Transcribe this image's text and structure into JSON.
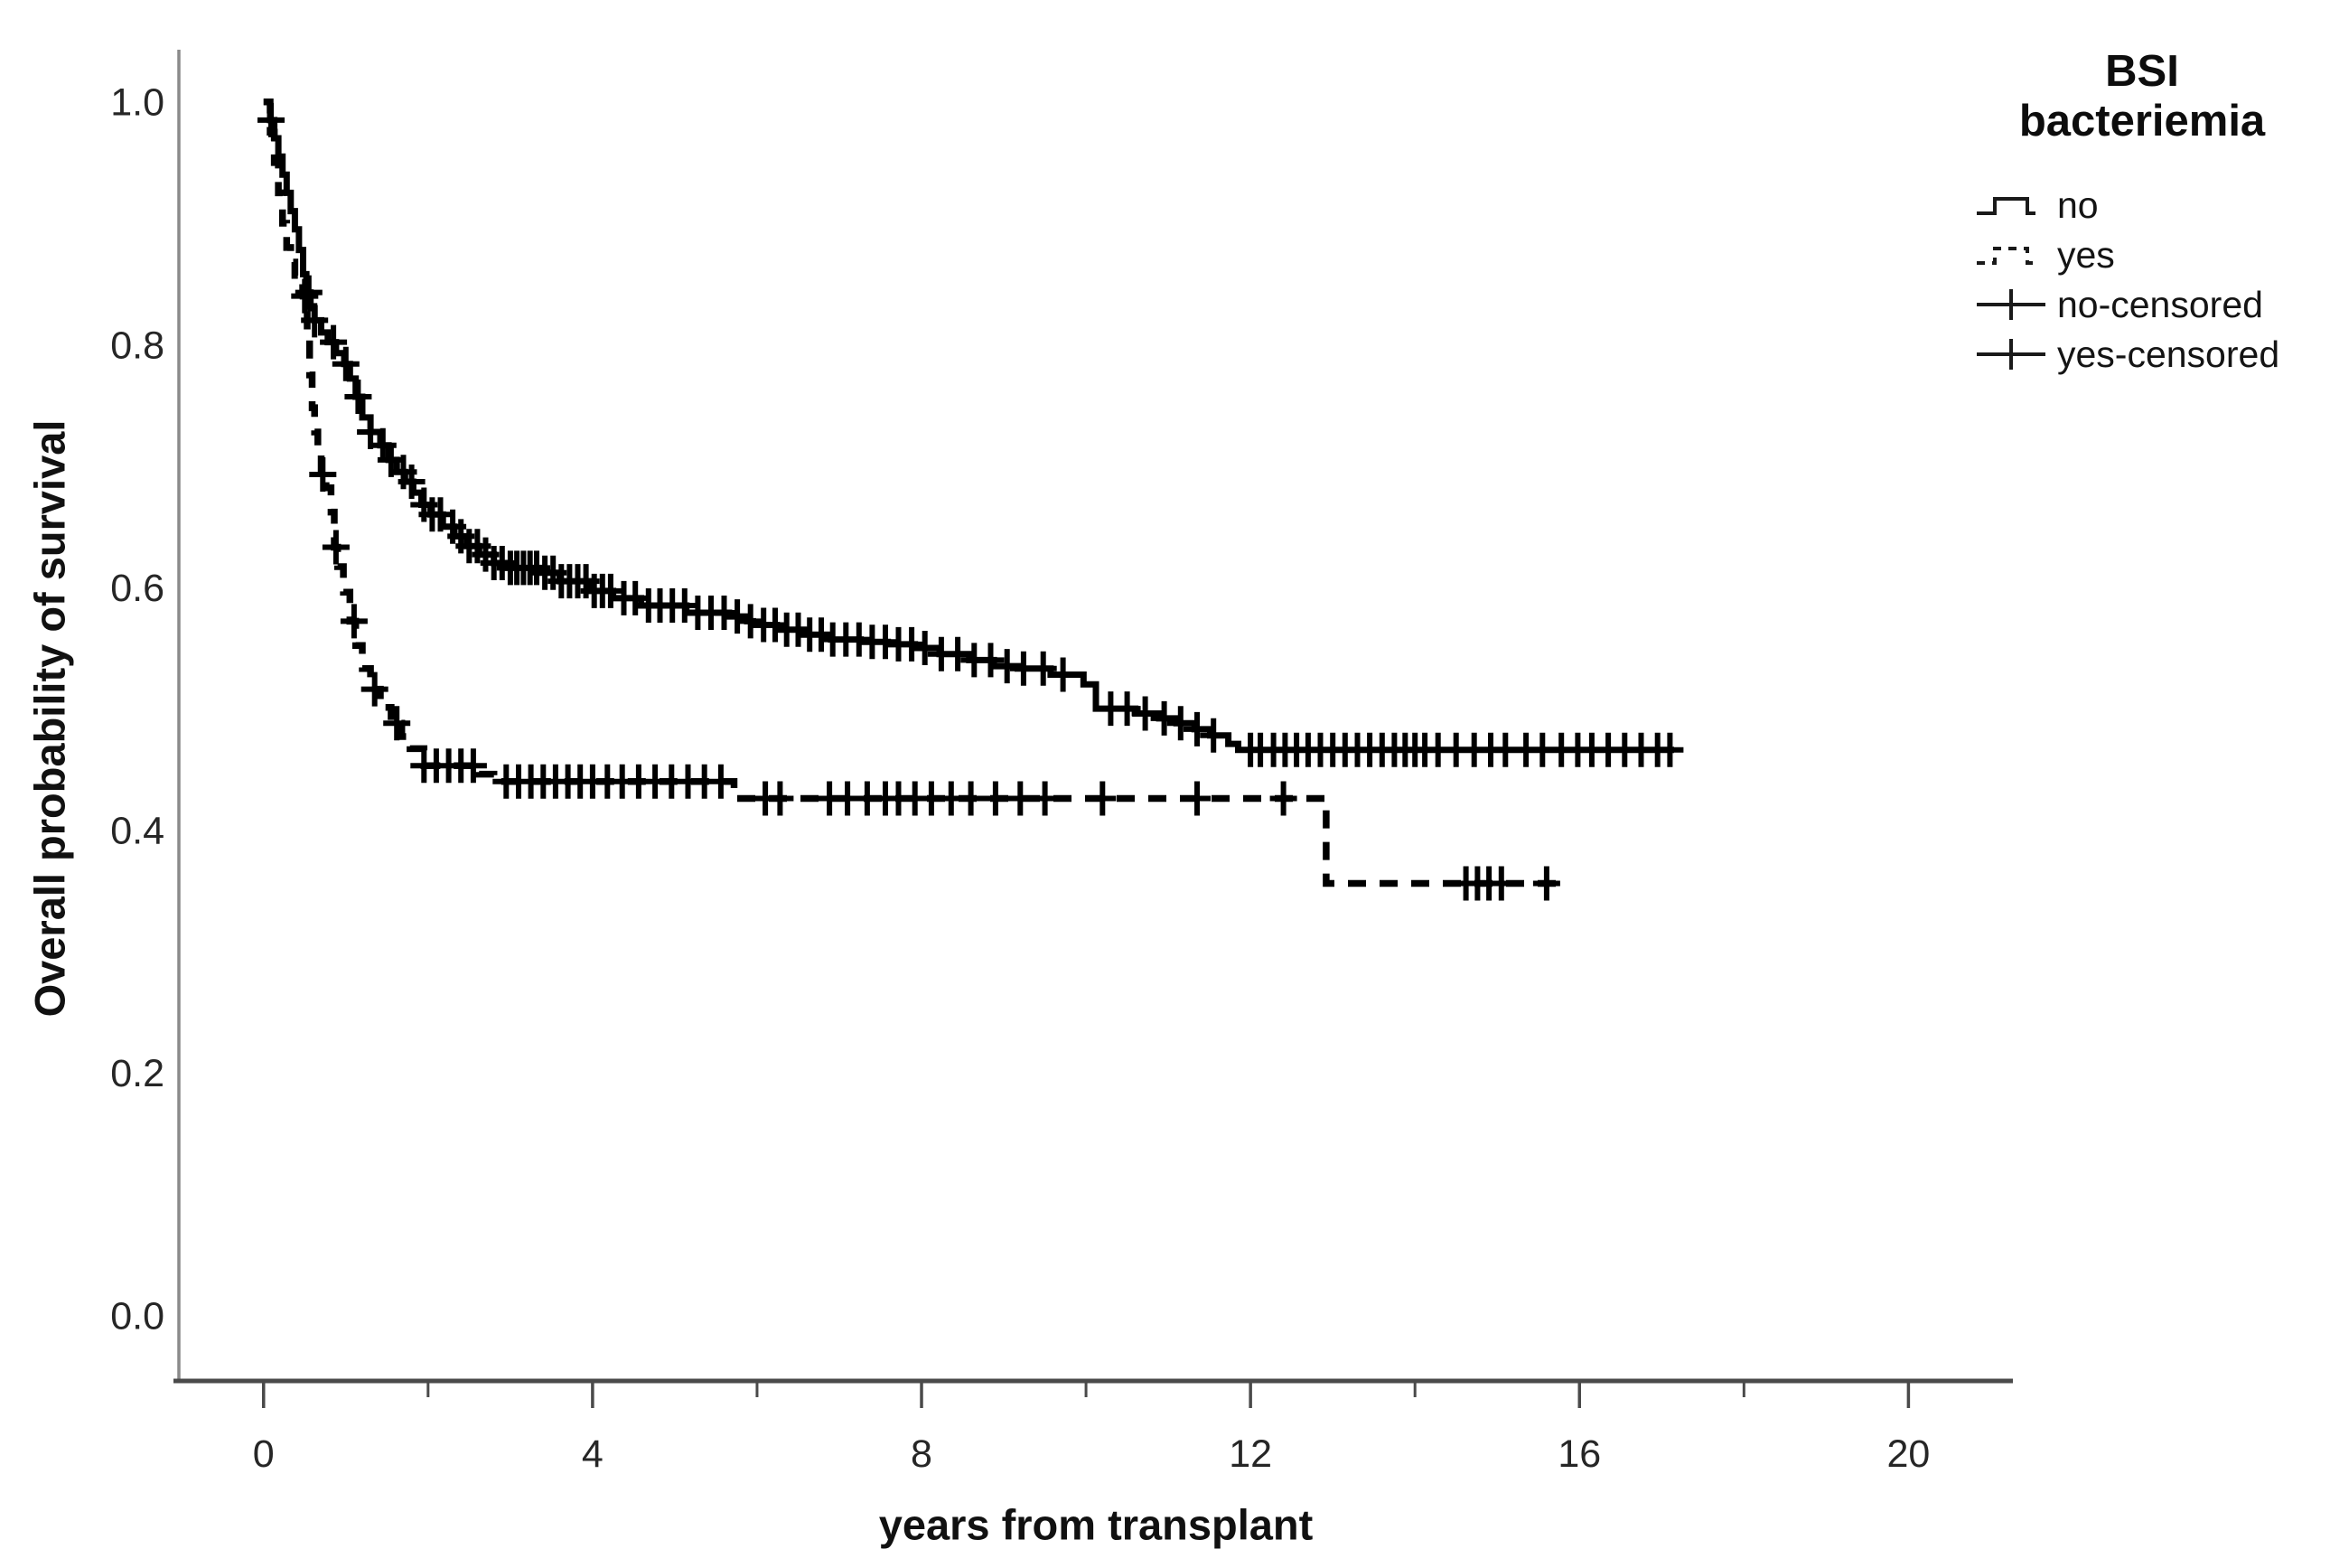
{
  "figure": {
    "background": "#ffffff",
    "curve_color": "#000000",
    "axis_line_color_left": "#8a8a8a",
    "axis_line_color_bottom": "#4a4a4a",
    "tick_label_color": "#262626"
  },
  "y_axis": {
    "title": "Overall probability of survival"
  },
  "x_axis": {
    "title": "years from transplant"
  },
  "legend": {
    "title_line1": "BSI",
    "title_line2": "bacteriemia",
    "items": [
      {
        "label": "no",
        "symbol": "solid-step-line"
      },
      {
        "label": "yes",
        "symbol": "dashed-step-line"
      },
      {
        "label": "no-censored",
        "symbol": "plus-on-line"
      },
      {
        "label": "yes-censored",
        "symbol": "plus-on-line"
      }
    ]
  },
  "chart_data": {
    "type": "line",
    "subtype": "kaplan_meier_step",
    "title": "",
    "xlabel": "years from transplant",
    "ylabel": "Overall probability of survival",
    "xlim": [
      -1.03,
      21.27
    ],
    "ylim": [
      -0.054,
      1.043
    ],
    "grid": false,
    "legend_position": "top-right",
    "x_ticks": {
      "major_values": [
        0,
        4,
        8,
        12,
        16,
        20
      ],
      "minor_values": [
        2,
        6,
        10,
        14,
        18
      ],
      "labels": [
        "0",
        "4",
        "8",
        "12",
        "16",
        "20"
      ]
    },
    "y_ticks": {
      "values": [
        0.0,
        0.2,
        0.4,
        0.6,
        0.8,
        1.0
      ],
      "labels": [
        "0.0",
        "0.2",
        "0.4",
        "0.6",
        "0.8",
        "1.0"
      ]
    },
    "series": [
      {
        "name": "no",
        "style": "solid",
        "color": "#000000",
        "points": [
          [
            0,
            1.0
          ],
          [
            0.08,
            0.985
          ],
          [
            0.13,
            0.97
          ],
          [
            0.18,
            0.955
          ],
          [
            0.23,
            0.94
          ],
          [
            0.28,
            0.925
          ],
          [
            0.33,
            0.91
          ],
          [
            0.38,
            0.895
          ],
          [
            0.43,
            0.878
          ],
          [
            0.48,
            0.858
          ],
          [
            0.52,
            0.843
          ],
          [
            0.57,
            0.83
          ],
          [
            0.62,
            0.82
          ],
          [
            0.7,
            0.81
          ],
          [
            0.78,
            0.802
          ],
          [
            0.88,
            0.793
          ],
          [
            0.98,
            0.784
          ],
          [
            1.05,
            0.772
          ],
          [
            1.12,
            0.757
          ],
          [
            1.2,
            0.74
          ],
          [
            1.3,
            0.728
          ],
          [
            1.42,
            0.717
          ],
          [
            1.52,
            0.705
          ],
          [
            1.62,
            0.695
          ],
          [
            1.72,
            0.687
          ],
          [
            1.82,
            0.678
          ],
          [
            1.92,
            0.668
          ],
          [
            2.03,
            0.66
          ],
          [
            2.18,
            0.65
          ],
          [
            2.32,
            0.642
          ],
          [
            2.47,
            0.634
          ],
          [
            2.62,
            0.627
          ],
          [
            2.8,
            0.62
          ],
          [
            2.95,
            0.616
          ],
          [
            3.38,
            0.612
          ],
          [
            3.6,
            0.605
          ],
          [
            3.97,
            0.597
          ],
          [
            4.25,
            0.591
          ],
          [
            4.59,
            0.585
          ],
          [
            5.14,
            0.579
          ],
          [
            5.66,
            0.576
          ],
          [
            5.88,
            0.572
          ],
          [
            5.95,
            0.569
          ],
          [
            6.24,
            0.565
          ],
          [
            6.57,
            0.561
          ],
          [
            6.9,
            0.557
          ],
          [
            7.26,
            0.555
          ],
          [
            7.59,
            0.553
          ],
          [
            7.92,
            0.55
          ],
          [
            8.22,
            0.545
          ],
          [
            8.58,
            0.54
          ],
          [
            8.88,
            0.535
          ],
          [
            9.17,
            0.533
          ],
          [
            9.57,
            0.528
          ],
          [
            9.97,
            0.52
          ],
          [
            10.12,
            0.5
          ],
          [
            10.6,
            0.496
          ],
          [
            10.89,
            0.492
          ],
          [
            11.1,
            0.488
          ],
          [
            11.32,
            0.483
          ],
          [
            11.51,
            0.478
          ],
          [
            11.73,
            0.471
          ],
          [
            11.85,
            0.466
          ],
          [
            17.15,
            0.466
          ]
        ],
        "censored_years": [
          0.09,
          0.55,
          0.62,
          0.85,
          1.0,
          1.15,
          1.3,
          1.45,
          1.55,
          1.7,
          1.8,
          1.95,
          2.05,
          2.15,
          2.3,
          2.4,
          2.5,
          2.6,
          2.7,
          2.8,
          2.9,
          3.0,
          3.08,
          3.16,
          3.24,
          3.32,
          3.42,
          3.52,
          3.62,
          3.72,
          3.82,
          3.92,
          4.02,
          4.12,
          4.22,
          4.38,
          4.52,
          4.68,
          4.82,
          4.97,
          5.12,
          5.28,
          5.44,
          5.6,
          5.76,
          5.92,
          6.08,
          6.22,
          6.36,
          6.5,
          6.64,
          6.78,
          6.92,
          7.08,
          7.24,
          7.4,
          7.56,
          7.72,
          7.88,
          8.04,
          8.24,
          8.44,
          8.64,
          8.84,
          9.04,
          9.24,
          9.48,
          9.72,
          10.3,
          10.5,
          10.72,
          10.95,
          11.15,
          11.35,
          11.55,
          12.0,
          12.12,
          12.28,
          12.42,
          12.56,
          12.7,
          12.85,
          13.0,
          13.15,
          13.3,
          13.45,
          13.6,
          13.75,
          13.88,
          14.0,
          14.12,
          14.28,
          14.5,
          14.72,
          14.92,
          15.1,
          15.35,
          15.55,
          15.78,
          15.98,
          16.15,
          16.35,
          16.55,
          16.75,
          16.95,
          17.1
        ]
      },
      {
        "name": "yes",
        "style": "dashed",
        "color": "#000000",
        "points": [
          [
            0,
            1.0
          ],
          [
            0.08,
            0.975
          ],
          [
            0.13,
            0.95
          ],
          [
            0.18,
            0.925
          ],
          [
            0.23,
            0.9
          ],
          [
            0.28,
            0.88
          ],
          [
            0.33,
            0.868
          ],
          [
            0.38,
            0.857
          ],
          [
            0.43,
            0.847
          ],
          [
            0.48,
            0.84
          ],
          [
            0.53,
            0.81
          ],
          [
            0.56,
            0.775
          ],
          [
            0.59,
            0.748
          ],
          [
            0.62,
            0.728
          ],
          [
            0.66,
            0.71
          ],
          [
            0.7,
            0.693
          ],
          [
            0.76,
            0.682
          ],
          [
            0.82,
            0.662
          ],
          [
            0.86,
            0.633
          ],
          [
            0.9,
            0.617
          ],
          [
            0.97,
            0.596
          ],
          [
            1.05,
            0.572
          ],
          [
            1.12,
            0.552
          ],
          [
            1.2,
            0.533
          ],
          [
            1.3,
            0.516
          ],
          [
            1.42,
            0.501
          ],
          [
            1.55,
            0.488
          ],
          [
            1.68,
            0.477
          ],
          [
            1.78,
            0.467
          ],
          [
            1.95,
            0.453
          ],
          [
            2.62,
            0.446
          ],
          [
            2.8,
            0.44
          ],
          [
            5.72,
            0.426
          ],
          [
            12.92,
            0.356
          ],
          [
            15.72,
            0.356
          ]
        ],
        "censored_years": [
          0.5,
          0.72,
          0.88,
          1.1,
          1.35,
          1.62,
          1.95,
          2.1,
          2.25,
          2.4,
          2.55,
          2.95,
          3.1,
          3.25,
          3.4,
          3.55,
          3.7,
          3.85,
          4.0,
          4.18,
          4.36,
          4.56,
          4.76,
          4.96,
          5.16,
          5.36,
          5.56,
          6.1,
          6.28,
          6.88,
          7.1,
          7.34,
          7.56,
          7.72,
          7.92,
          8.12,
          8.36,
          8.6,
          8.9,
          9.2,
          9.5,
          10.2,
          11.35,
          12.4,
          14.62,
          14.76,
          14.9,
          15.05,
          15.6
        ]
      }
    ]
  }
}
